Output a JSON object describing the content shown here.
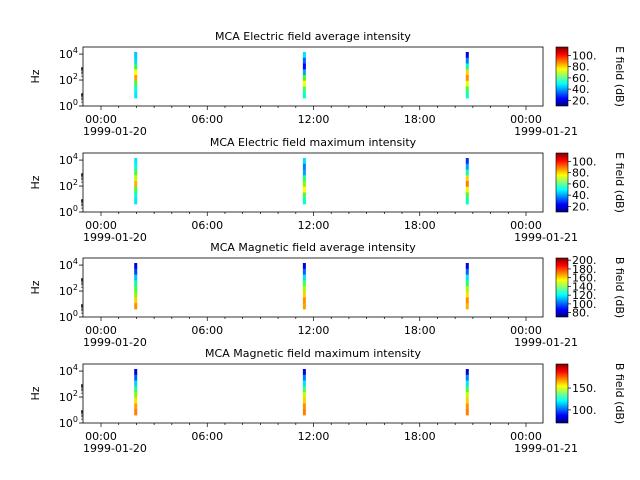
{
  "chart_data": [
    {
      "type": "heatmap",
      "title": "MCA  Electric field average intensity",
      "ylabel": "Hz",
      "yscale": "log",
      "yticks": [
        {
          "exp": "0"
        },
        {
          "exp": "2"
        },
        {
          "exp": "4"
        }
      ],
      "xticks": [
        "00:00",
        "06:00",
        "12:00",
        "18:00",
        "00:00"
      ],
      "xdates": [
        "1999-01-20",
        "1999-01-21"
      ],
      "colorbar": {
        "label": "E field (dB)",
        "min": 10,
        "max": 115,
        "ticks": [
          "20.",
          "40.",
          "60.",
          "80.",
          "100."
        ]
      },
      "passes": [
        {
          "hour": 2.75,
          "color_profile": [
            "#00c8ff",
            "#00d8ff",
            "#20ff60",
            "#ffff00",
            "#ffa000",
            "#40ff40",
            "#00ffe0",
            "#00e8ff"
          ]
        },
        {
          "hour": 11.55,
          "color_profile": [
            "#00e0ff",
            "#0060ff",
            "#0000ff",
            "#00a0ff",
            "#40ff20",
            "#ffff00",
            "#40ff60",
            "#00ffd0"
          ]
        },
        {
          "hour": 20.05,
          "color_profile": [
            "#0000e0",
            "#0080ff",
            "#00ffb0",
            "#ffd000",
            "#ff9000",
            "#e0ff00",
            "#40ff40",
            "#00ffd0"
          ]
        }
      ]
    },
    {
      "type": "heatmap",
      "title": "MCA  Electric field maximum intensity",
      "ylabel": "Hz",
      "yscale": "log",
      "yticks": [
        {
          "exp": "0"
        },
        {
          "exp": "2"
        },
        {
          "exp": "4"
        }
      ],
      "xticks": [
        "00:00",
        "06:00",
        "12:00",
        "18:00",
        "00:00"
      ],
      "xdates": [
        "1999-01-20",
        "1999-01-21"
      ],
      "colorbar": {
        "label": "E field (dB)",
        "min": 10,
        "max": 115,
        "ticks": [
          "20.",
          "40.",
          "60.",
          "80.",
          "100."
        ]
      },
      "passes": [
        {
          "hour": 2.75,
          "color_profile": [
            "#00e8ff",
            "#00ffe0",
            "#40ff40",
            "#c0ff00",
            "#ffb000",
            "#40ff40",
            "#00ffd0",
            "#00e8ff"
          ]
        },
        {
          "hour": 11.55,
          "color_profile": [
            "#00e0ff",
            "#0080ff",
            "#00a0ff",
            "#20ff80",
            "#80ff00",
            "#ffff00",
            "#40ff40",
            "#00ffd0"
          ]
        },
        {
          "hour": 20.05,
          "color_profile": [
            "#0030ff",
            "#00a0ff",
            "#00ffc0",
            "#ffd000",
            "#ff8000",
            "#e0ff00",
            "#40ff40",
            "#00ffd0"
          ]
        }
      ]
    },
    {
      "type": "heatmap",
      "title": "MCA  Magnetic field average intensity",
      "ylabel": "Hz",
      "yscale": "log",
      "yticks": [
        {
          "exp": "0"
        },
        {
          "exp": "2"
        },
        {
          "exp": "4"
        }
      ],
      "xticks": [
        "00:00",
        "06:00",
        "12:00",
        "18:00",
        "00:00"
      ],
      "xdates": [
        "1999-01-20",
        "1999-01-21"
      ],
      "colorbar": {
        "label": "B field (dB)",
        "min": 70,
        "max": 205,
        "ticks": [
          "80.",
          "100.",
          "120.",
          "140.",
          "160.",
          "180.",
          "200."
        ]
      },
      "passes": [
        {
          "hour": 2.75,
          "color_profile": [
            "#0000e0",
            "#0040ff",
            "#00c0ff",
            "#00ffb0",
            "#40ff40",
            "#80ff00",
            "#ffd000",
            "#ff9000"
          ]
        },
        {
          "hour": 11.55,
          "color_profile": [
            "#0000e0",
            "#0060ff",
            "#00e0ff",
            "#40ff60",
            "#a0ff00",
            "#ffd000",
            "#ff9000",
            "#ffa000"
          ]
        },
        {
          "hour": 20.05,
          "color_profile": [
            "#0000e0",
            "#0060ff",
            "#00e0ff",
            "#20ff80",
            "#a0ff00",
            "#ffe000",
            "#ff9000",
            "#ffb000"
          ]
        }
      ]
    },
    {
      "type": "heatmap",
      "title": "MCA  Magnetic field maximum intensity",
      "ylabel": "Hz",
      "yscale": "log",
      "yticks": [
        {
          "exp": "0"
        },
        {
          "exp": "2"
        },
        {
          "exp": "4"
        }
      ],
      "xticks": [
        "00:00",
        "06:00",
        "12:00",
        "18:00",
        "00:00"
      ],
      "xdates": [
        "1999-01-20",
        "1999-01-21"
      ],
      "colorbar": {
        "label": "B field (dB)",
        "min": 70,
        "max": 205,
        "ticks": [
          "100.",
          "150."
        ]
      },
      "passes": [
        {
          "hour": 2.75,
          "color_profile": [
            "#0000e0",
            "#0060ff",
            "#00d0ff",
            "#20ff80",
            "#80ff00",
            "#ffe000",
            "#ffa000",
            "#ff8000"
          ]
        },
        {
          "hour": 11.55,
          "color_profile": [
            "#0000e0",
            "#0080ff",
            "#00e0ff",
            "#40ff60",
            "#c0ff00",
            "#ffd000",
            "#ff9000",
            "#ff8000"
          ]
        },
        {
          "hour": 20.05,
          "color_profile": [
            "#0000e0",
            "#0080ff",
            "#00e8ff",
            "#40ff40",
            "#c0ff00",
            "#ffd000",
            "#ff9000",
            "#ff8000"
          ]
        }
      ]
    }
  ]
}
